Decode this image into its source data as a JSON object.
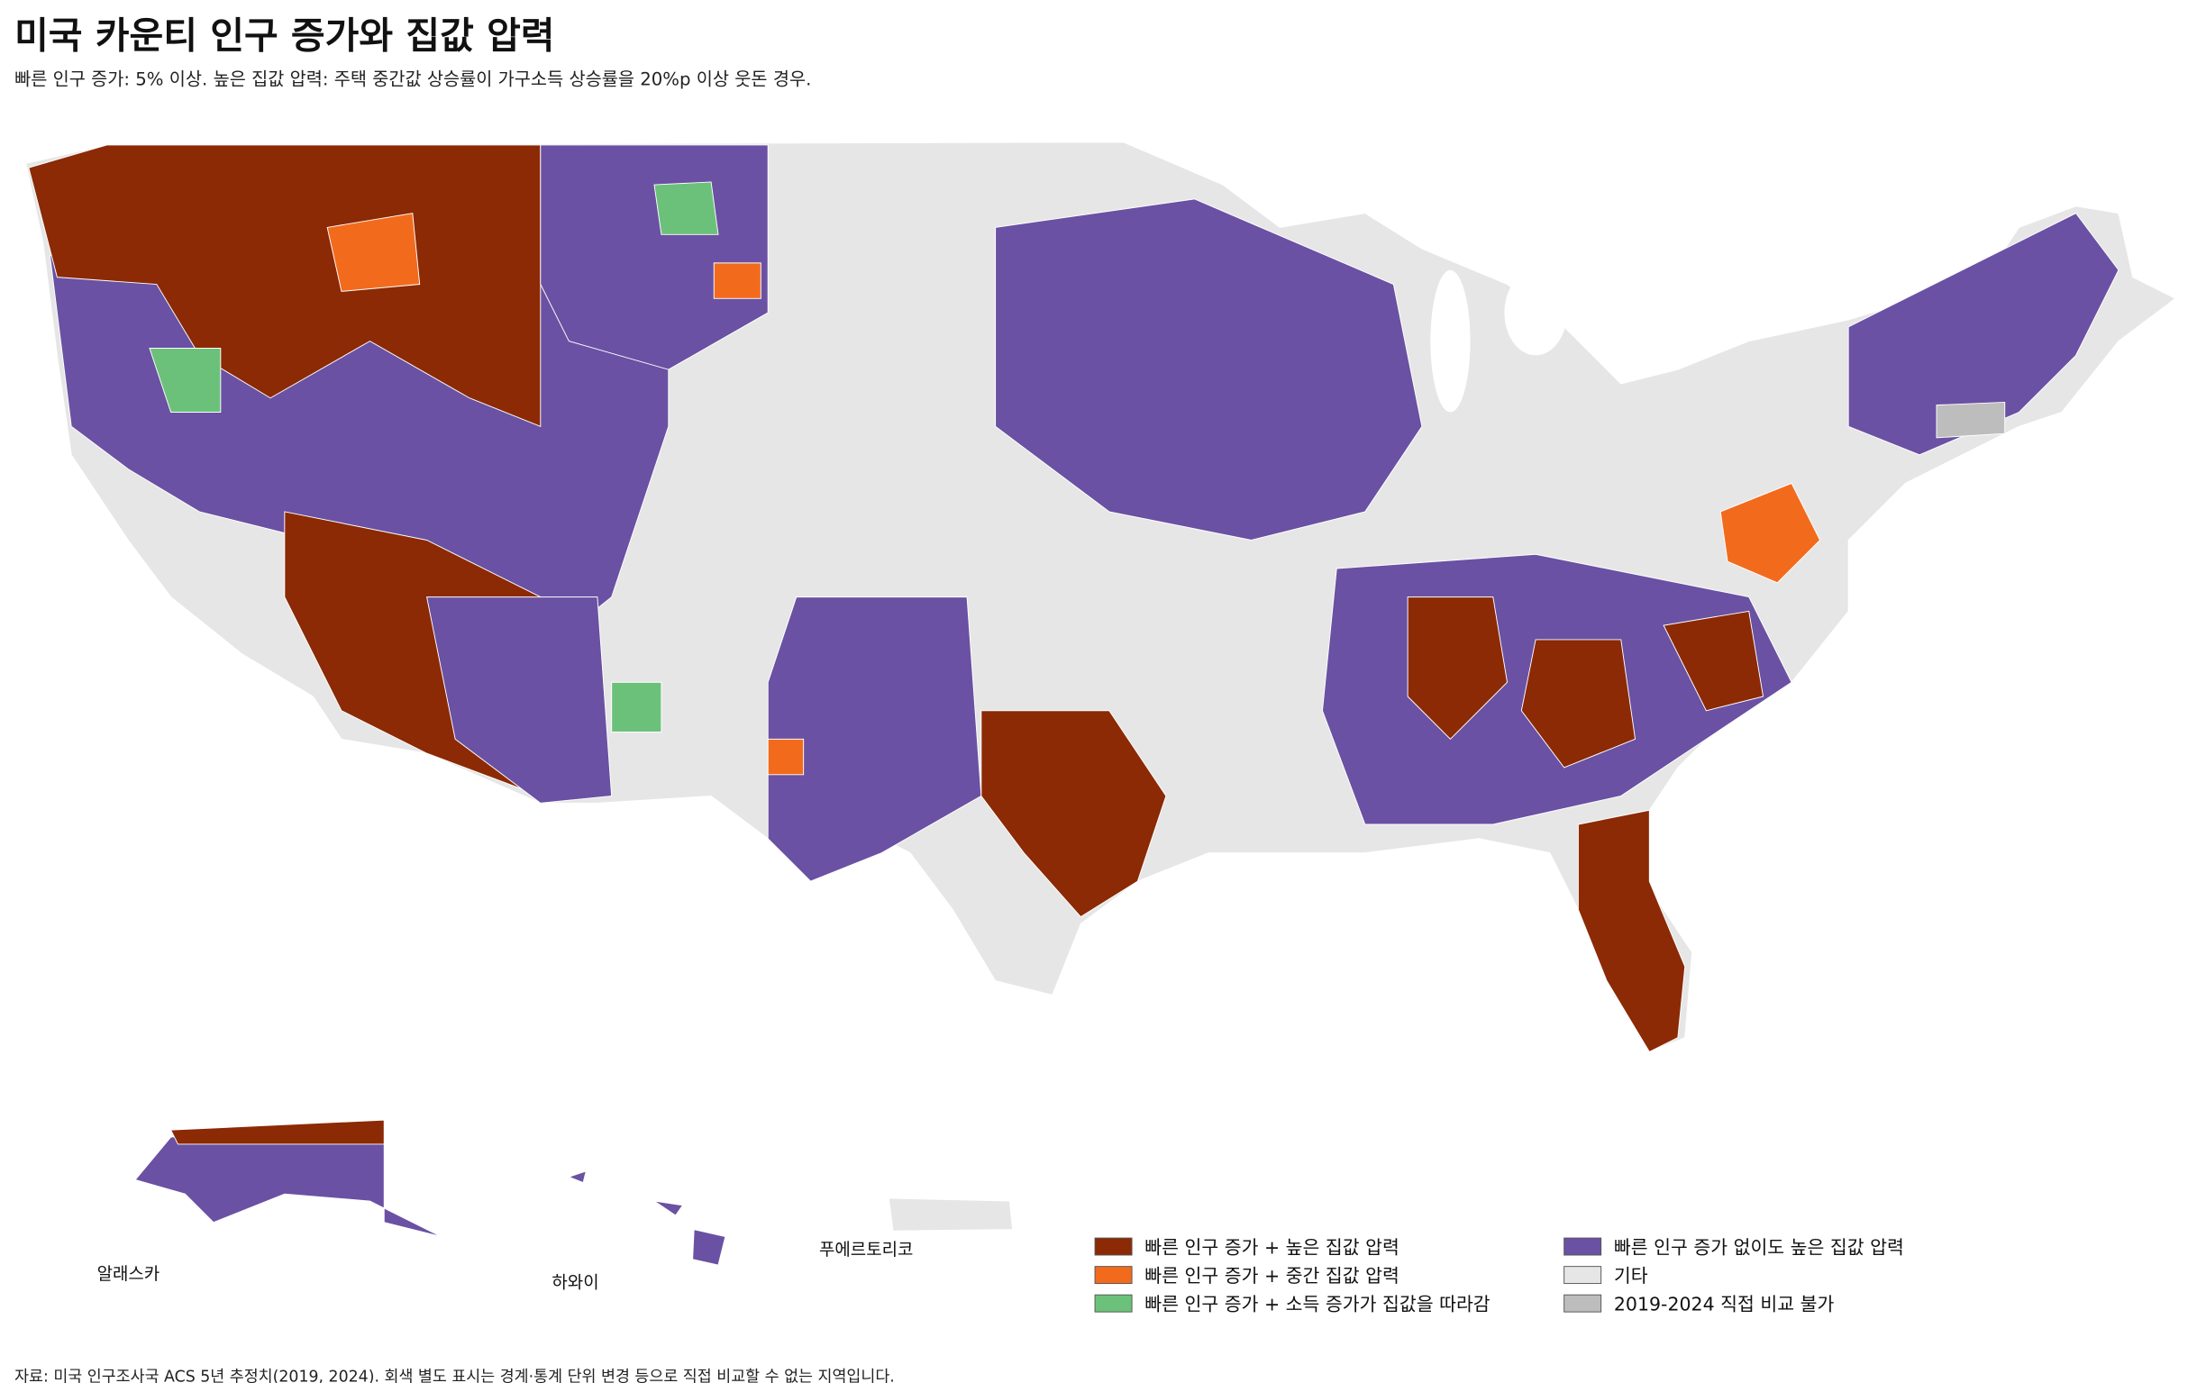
{
  "title": "미국 카운티 인구 증가와 집값 압력",
  "subtitle": "빠른 인구 증가: 5% 이상. 높은 집값 압력: 주택 중간값 상승률이 가구소득 상승률을 20%p 이상 웃돈 경우.",
  "insets": [
    "알래스카",
    "하와이",
    "푸에르토리코"
  ],
  "legend": [
    {
      "label": "빠른 인구 증가 + 높은 집값 압력",
      "color": "#8B2A05"
    },
    {
      "label": "빠른 인구 증가 + 중간 집값 압력",
      "color": "#F26B1D"
    },
    {
      "label": "빠른 인구 증가 + 소득 증가가 집값을 따라감",
      "color": "#6CC17A"
    },
    {
      "label": "빠른 인구 증가 없이도 높은 집값 압력",
      "color": "#6A51A3"
    },
    {
      "label": "기타",
      "color": "#E6E6E6"
    },
    {
      "label": "2019-2024 직접 비교 불가",
      "color": "#BDBDBD"
    }
  ],
  "source": "자료: 미국 인구조사국 ACS 5년 추정치(2019, 2024). 회색 별도 표시는 경계·통계 단위 변경 등으로 직접 비교할 수 없는 지역입니다."
}
